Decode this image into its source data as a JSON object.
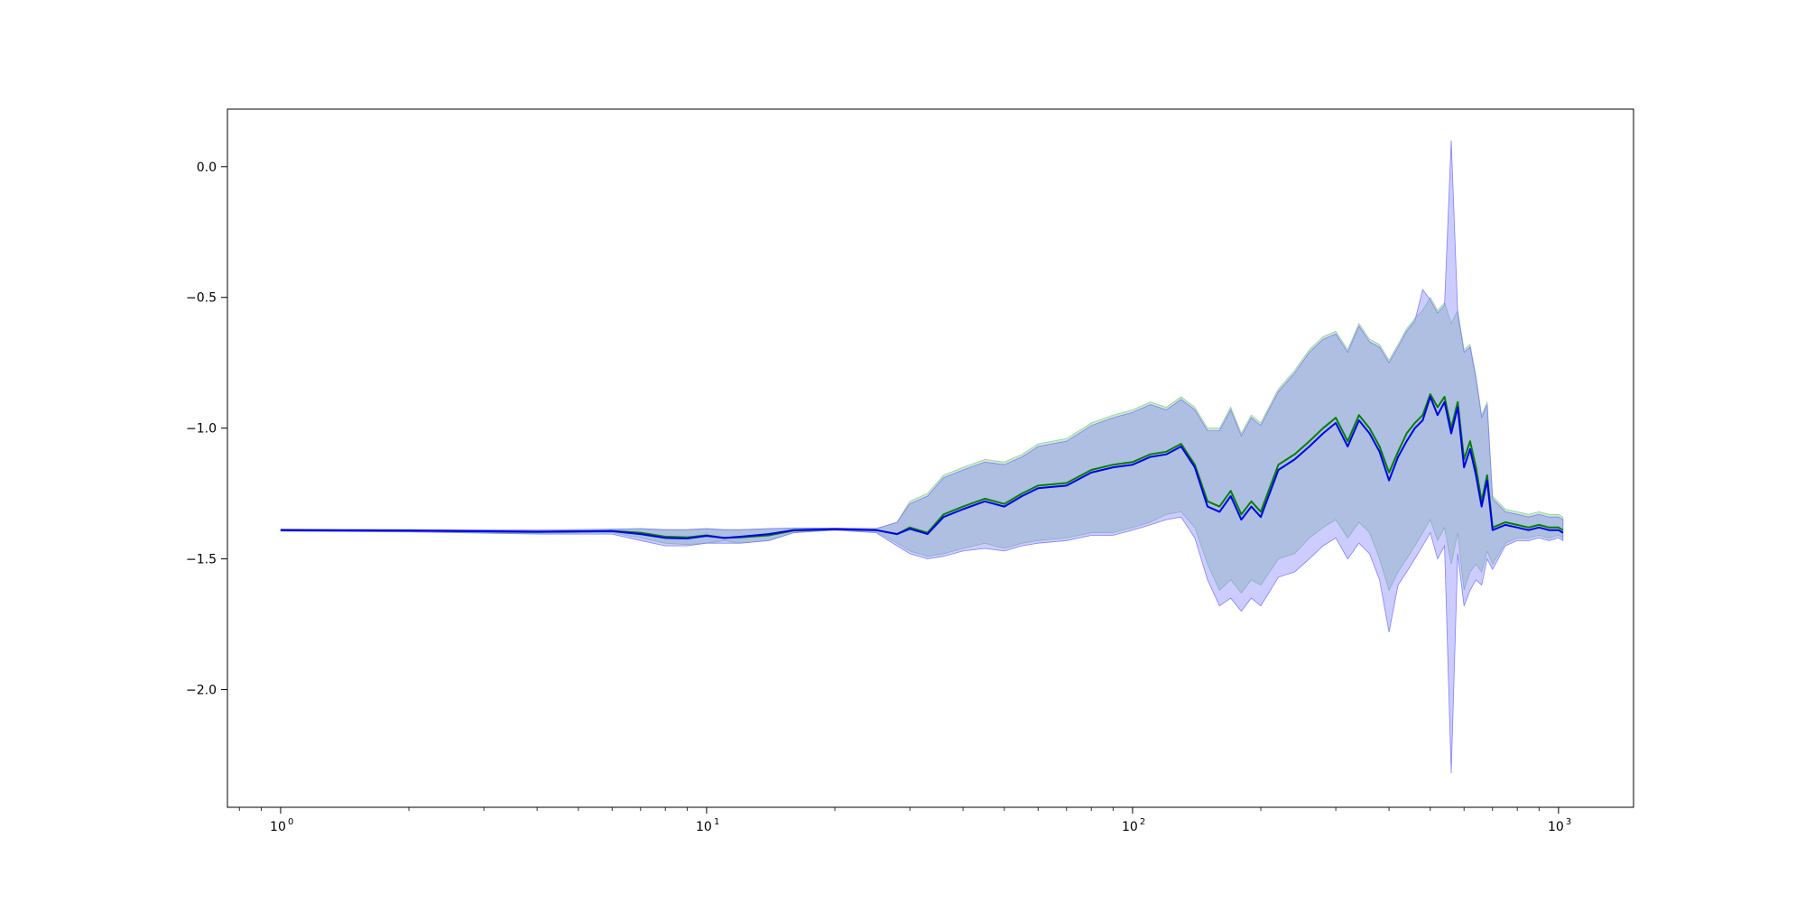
{
  "chart_data": {
    "type": "line",
    "title": "",
    "xlabel": "",
    "ylabel": "",
    "xscale": "log",
    "xlim": [
      0.75,
      1500
    ],
    "ylim": [
      -2.45,
      0.22
    ],
    "grid": false,
    "legend": "none",
    "x_ticks": [
      {
        "value": 1,
        "base": "10",
        "exp": "0"
      },
      {
        "value": 10,
        "base": "10",
        "exp": "1"
      },
      {
        "value": 100,
        "base": "10",
        "exp": "2"
      },
      {
        "value": 1000,
        "base": "10",
        "exp": "3"
      }
    ],
    "y_ticks": [
      {
        "value": 0.0,
        "label": "0.0"
      },
      {
        "value": -0.5,
        "label": "−0.5"
      },
      {
        "value": -1.0,
        "label": "−1.0"
      },
      {
        "value": -1.5,
        "label": "−1.5"
      },
      {
        "value": -2.0,
        "label": "−2.0"
      }
    ],
    "series": [
      {
        "color": "#008000",
        "band_color": "#90d090",
        "x": [
          1,
          2,
          4,
          6,
          7,
          8,
          9,
          10,
          11,
          12,
          14,
          16,
          20,
          25,
          28,
          30,
          33,
          36,
          40,
          45,
          50,
          55,
          60,
          70,
          80,
          90,
          100,
          110,
          120,
          130,
          140,
          150,
          160,
          170,
          180,
          190,
          200,
          220,
          240,
          260,
          280,
          300,
          320,
          340,
          360,
          380,
          400,
          420,
          440,
          460,
          480,
          500,
          520,
          540,
          560,
          580,
          600,
          620,
          640,
          660,
          680,
          700,
          750,
          800,
          850,
          900,
          950,
          1000,
          1024
        ],
        "y": [
          -1.39,
          -1.392,
          -1.397,
          -1.393,
          -1.4,
          -1.415,
          -1.418,
          -1.41,
          -1.42,
          -1.418,
          -1.41,
          -1.392,
          -1.387,
          -1.39,
          -1.405,
          -1.38,
          -1.4,
          -1.33,
          -1.3,
          -1.27,
          -1.29,
          -1.25,
          -1.22,
          -1.21,
          -1.16,
          -1.14,
          -1.13,
          -1.1,
          -1.09,
          -1.06,
          -1.14,
          -1.28,
          -1.3,
          -1.24,
          -1.33,
          -1.28,
          -1.32,
          -1.14,
          -1.1,
          -1.05,
          -1.0,
          -0.96,
          -1.05,
          -0.95,
          -1.0,
          -1.07,
          -1.17,
          -1.09,
          -1.02,
          -0.98,
          -0.95,
          -0.87,
          -0.92,
          -0.88,
          -1.0,
          -0.9,
          -1.12,
          -1.05,
          -1.15,
          -1.28,
          -1.18,
          -1.38,
          -1.36,
          -1.37,
          -1.38,
          -1.37,
          -1.38,
          -1.38,
          -1.39
        ],
        "lower": [
          -1.393,
          -1.395,
          -1.402,
          -1.4,
          -1.42,
          -1.44,
          -1.445,
          -1.44,
          -1.43,
          -1.44,
          -1.43,
          -1.4,
          -1.39,
          -1.395,
          -1.44,
          -1.47,
          -1.49,
          -1.48,
          -1.46,
          -1.44,
          -1.46,
          -1.44,
          -1.43,
          -1.42,
          -1.4,
          -1.4,
          -1.38,
          -1.36,
          -1.33,
          -1.32,
          -1.38,
          -1.52,
          -1.62,
          -1.58,
          -1.63,
          -1.58,
          -1.6,
          -1.5,
          -1.48,
          -1.42,
          -1.38,
          -1.35,
          -1.42,
          -1.36,
          -1.4,
          -1.5,
          -1.62,
          -1.55,
          -1.5,
          -1.45,
          -1.4,
          -1.35,
          -1.43,
          -1.38,
          -1.52,
          -1.4,
          -1.62,
          -1.55,
          -1.52,
          -1.55,
          -1.47,
          -1.52,
          -1.44,
          -1.42,
          -1.42,
          -1.41,
          -1.42,
          -1.41,
          -1.42
        ],
        "upper": [
          -1.387,
          -1.389,
          -1.392,
          -1.387,
          -1.385,
          -1.39,
          -1.39,
          -1.385,
          -1.39,
          -1.39,
          -1.385,
          -1.383,
          -1.383,
          -1.385,
          -1.36,
          -1.28,
          -1.25,
          -1.18,
          -1.15,
          -1.12,
          -1.13,
          -1.1,
          -1.06,
          -1.04,
          -0.98,
          -0.95,
          -0.93,
          -0.9,
          -0.92,
          -0.88,
          -0.92,
          -1.0,
          -1.0,
          -0.92,
          -1.02,
          -0.95,
          -0.98,
          -0.85,
          -0.78,
          -0.7,
          -0.65,
          -0.63,
          -0.7,
          -0.6,
          -0.66,
          -0.68,
          -0.74,
          -0.68,
          -0.62,
          -0.58,
          -0.55,
          -0.5,
          -0.55,
          -0.52,
          -0.6,
          -0.55,
          -0.7,
          -0.68,
          -0.8,
          -0.95,
          -0.9,
          -1.26,
          -1.31,
          -1.32,
          -1.33,
          -1.32,
          -1.33,
          -1.33,
          -1.34
        ]
      },
      {
        "color": "#0000ee",
        "band_color": "#8080ff",
        "x": [
          1,
          2,
          4,
          6,
          7,
          8,
          9,
          10,
          11,
          12,
          14,
          16,
          20,
          25,
          28,
          30,
          33,
          36,
          40,
          45,
          50,
          55,
          60,
          70,
          80,
          90,
          100,
          110,
          120,
          130,
          140,
          150,
          160,
          170,
          180,
          190,
          200,
          220,
          240,
          260,
          280,
          300,
          320,
          340,
          360,
          380,
          400,
          420,
          440,
          460,
          480,
          500,
          520,
          540,
          560,
          580,
          600,
          620,
          640,
          660,
          680,
          700,
          750,
          800,
          850,
          900,
          950,
          1000,
          1024
        ],
        "y": [
          -1.39,
          -1.392,
          -1.396,
          -1.394,
          -1.405,
          -1.42,
          -1.422,
          -1.412,
          -1.42,
          -1.415,
          -1.405,
          -1.39,
          -1.386,
          -1.39,
          -1.405,
          -1.385,
          -1.405,
          -1.34,
          -1.31,
          -1.28,
          -1.3,
          -1.26,
          -1.23,
          -1.22,
          -1.17,
          -1.15,
          -1.14,
          -1.11,
          -1.1,
          -1.07,
          -1.15,
          -1.3,
          -1.32,
          -1.26,
          -1.35,
          -1.3,
          -1.34,
          -1.16,
          -1.12,
          -1.07,
          -1.02,
          -0.98,
          -1.07,
          -0.97,
          -1.02,
          -1.09,
          -1.2,
          -1.11,
          -1.05,
          -1.0,
          -0.97,
          -0.88,
          -0.95,
          -0.9,
          -1.02,
          -0.92,
          -1.15,
          -1.08,
          -1.18,
          -1.3,
          -1.2,
          -1.39,
          -1.37,
          -1.38,
          -1.39,
          -1.38,
          -1.39,
          -1.39,
          -1.4
        ],
        "lower": [
          -1.394,
          -1.397,
          -1.405,
          -1.405,
          -1.43,
          -1.45,
          -1.45,
          -1.44,
          -1.44,
          -1.44,
          -1.43,
          -1.4,
          -1.39,
          -1.4,
          -1.45,
          -1.48,
          -1.5,
          -1.49,
          -1.47,
          -1.46,
          -1.47,
          -1.45,
          -1.44,
          -1.43,
          -1.41,
          -1.41,
          -1.39,
          -1.37,
          -1.35,
          -1.34,
          -1.42,
          -1.58,
          -1.68,
          -1.65,
          -1.7,
          -1.65,
          -1.68,
          -1.57,
          -1.55,
          -1.5,
          -1.45,
          -1.42,
          -1.5,
          -1.44,
          -1.48,
          -1.58,
          -1.78,
          -1.6,
          -1.55,
          -1.5,
          -1.45,
          -1.4,
          -1.5,
          -1.45,
          -2.32,
          -1.48,
          -1.68,
          -1.62,
          -1.58,
          -1.6,
          -1.5,
          -1.54,
          -1.45,
          -1.43,
          -1.43,
          -1.42,
          -1.43,
          -1.42,
          -1.43
        ],
        "upper": [
          -1.386,
          -1.388,
          -1.39,
          -1.386,
          -1.384,
          -1.388,
          -1.388,
          -1.384,
          -1.388,
          -1.388,
          -1.384,
          -1.382,
          -1.382,
          -1.384,
          -1.36,
          -1.29,
          -1.26,
          -1.19,
          -1.16,
          -1.13,
          -1.14,
          -1.11,
          -1.07,
          -1.05,
          -0.99,
          -0.96,
          -0.94,
          -0.91,
          -0.93,
          -0.89,
          -0.93,
          -1.01,
          -1.01,
          -0.93,
          -1.03,
          -0.96,
          -0.99,
          -0.86,
          -0.79,
          -0.71,
          -0.66,
          -0.64,
          -0.71,
          -0.61,
          -0.67,
          -0.69,
          -0.75,
          -0.69,
          -0.63,
          -0.59,
          -0.47,
          -0.51,
          -0.56,
          -0.53,
          0.1,
          -0.56,
          -0.71,
          -0.69,
          -0.81,
          -0.96,
          -0.91,
          -1.27,
          -1.32,
          -1.33,
          -1.34,
          -1.33,
          -1.34,
          -1.34,
          -1.35
        ]
      }
    ]
  }
}
